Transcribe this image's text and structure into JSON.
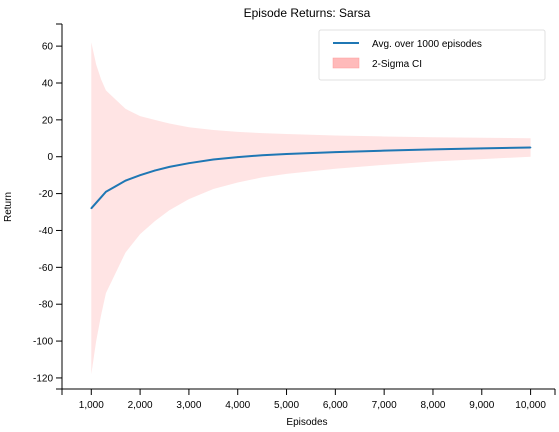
{
  "chart_data": {
    "type": "line",
    "title": "Episode Returns: Sarsa",
    "xlabel": "Episodes",
    "ylabel": "Return",
    "xlim": [
      400,
      10500
    ],
    "ylim": [
      -126,
      72
    ],
    "x_ticks": [
      1000,
      2000,
      3000,
      4000,
      5000,
      6000,
      7000,
      8000,
      9000,
      10000
    ],
    "x_tick_labels": [
      "1,000",
      "2,000",
      "3,000",
      "4,000",
      "5,000",
      "6,000",
      "7,000",
      "8,000",
      "9,000",
      "10,000"
    ],
    "y_ticks": [
      -120,
      -100,
      -80,
      -60,
      -40,
      -20,
      0,
      20,
      40,
      60
    ],
    "y_tick_labels": [
      "-120",
      "-100",
      "-80",
      "-60",
      "-40",
      "-20",
      "0",
      "20",
      "40",
      "60"
    ],
    "grid": false,
    "legend_position": "top-right",
    "series": [
      {
        "name": "Avg. over 1000 episodes",
        "kind": "line",
        "color": "#1f77b4",
        "x": [
          1000,
          1100,
          1200,
          1300,
          1500,
          1700,
          2000,
          2300,
          2600,
          3000,
          3500,
          4000,
          4500,
          5000,
          6000,
          7000,
          8000,
          9000,
          10000
        ],
        "values": [
          -28,
          -25,
          -22,
          -19,
          -16,
          -13,
          -10,
          -7.5,
          -5.5,
          -3.5,
          -1.5,
          -0.2,
          0.8,
          1.5,
          2.5,
          3.3,
          4.0,
          4.5,
          5.0
        ]
      },
      {
        "name": "2-Sigma CI",
        "kind": "band",
        "color": "#ffb3b3",
        "x": [
          1000,
          1100,
          1200,
          1300,
          1500,
          1700,
          2000,
          2300,
          2600,
          3000,
          3500,
          4000,
          4500,
          5000,
          6000,
          7000,
          8000,
          9000,
          10000
        ],
        "upper": [
          62,
          50,
          42,
          36,
          31,
          26,
          22,
          20,
          18,
          16,
          14.5,
          13.5,
          12.8,
          12.3,
          11.5,
          11,
          10.6,
          10.3,
          10
        ],
        "lower": [
          -118,
          -100,
          -86,
          -74,
          -63,
          -52,
          -42,
          -35,
          -29,
          -23,
          -17.5,
          -14,
          -11.2,
          -9.3,
          -6.5,
          -4.4,
          -2.6,
          -1.3,
          0
        ]
      }
    ]
  }
}
